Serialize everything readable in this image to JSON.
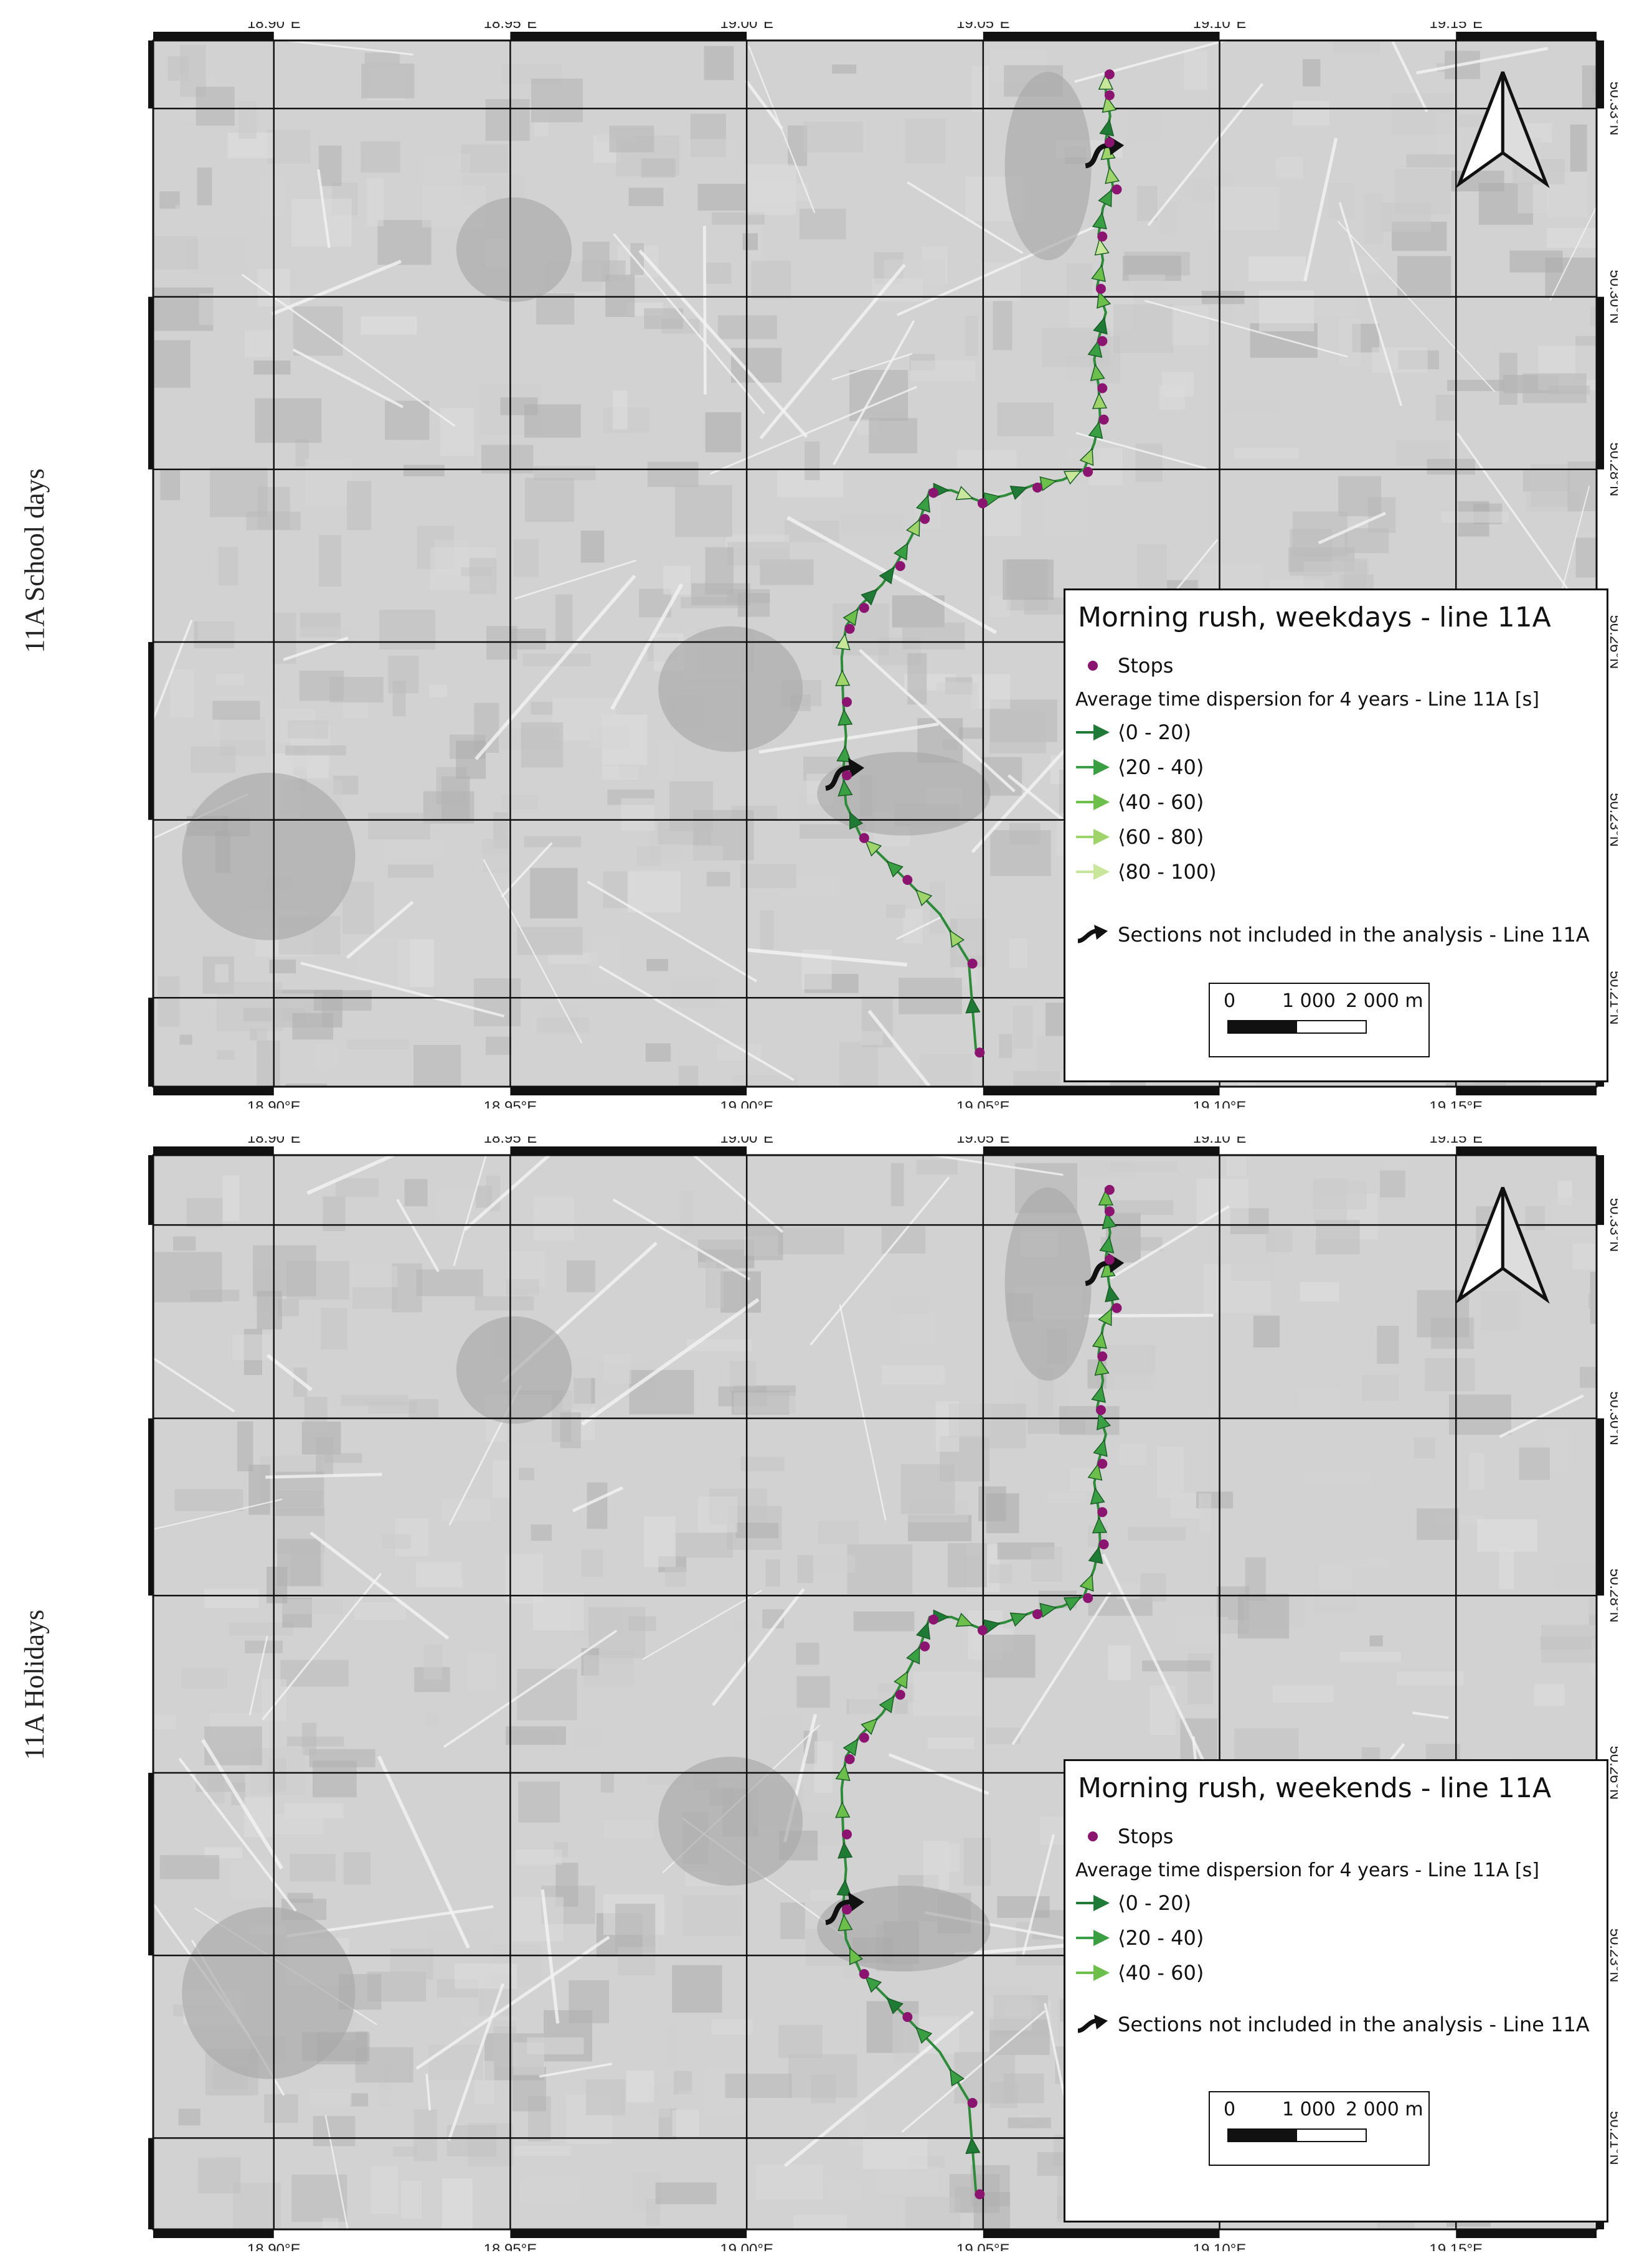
{
  "panels": [
    {
      "side_label": "11A School days",
      "legend": {
        "title": "Morning rush, weekdays - line 11A",
        "stops_label": "Stops",
        "subtitle": "Average time dispersion for 4 years - Line 11A [s]",
        "classes": [
          {
            "label": "⟨0 - 20)",
            "color": "#1f7a35"
          },
          {
            "label": "⟨20 - 40)",
            "color": "#3a9e42"
          },
          {
            "label": "⟨40 - 60)",
            "color": "#6cbf4a"
          },
          {
            "label": "⟨60 - 80)",
            "color": "#9fd46a"
          },
          {
            "label": "⟨80 - 100)",
            "color": "#c9e79a"
          }
        ],
        "excluded_label": "Sections not included in the analysis - Line 11A",
        "scale_labels": [
          "0",
          "1 000",
          "2 000 m"
        ]
      }
    },
    {
      "side_label": "11A Holidays",
      "legend": {
        "title": "Morning rush, weekends - line 11A",
        "stops_label": "Stops",
        "subtitle": "Average time dispersion for 4 years - Line 11A [s]",
        "classes": [
          {
            "label": "⟨0 - 20)",
            "color": "#1f7a35"
          },
          {
            "label": "⟨20 - 40)",
            "color": "#3a9e42"
          },
          {
            "label": "⟨40 - 60)",
            "color": "#6cbf4a"
          }
        ],
        "excluded_label": "Sections not included in the analysis - Line 11A",
        "scale_labels": [
          "0",
          "1 000",
          "2 000 m"
        ]
      }
    }
  ],
  "longitude_ticks": [
    "18.90°E",
    "18.95°E",
    "19.00°E",
    "19.05°E",
    "19.10°E",
    "19.15°E"
  ],
  "latitude_ticks": [
    "50.33°N",
    "50.30°N",
    "50.28°N",
    "50.26°N",
    "50.23°N",
    "50.21°N"
  ],
  "colors": {
    "map_background": "#d2d2d2",
    "stop": "#8b1470",
    "excluded_arrow": "#111111"
  }
}
